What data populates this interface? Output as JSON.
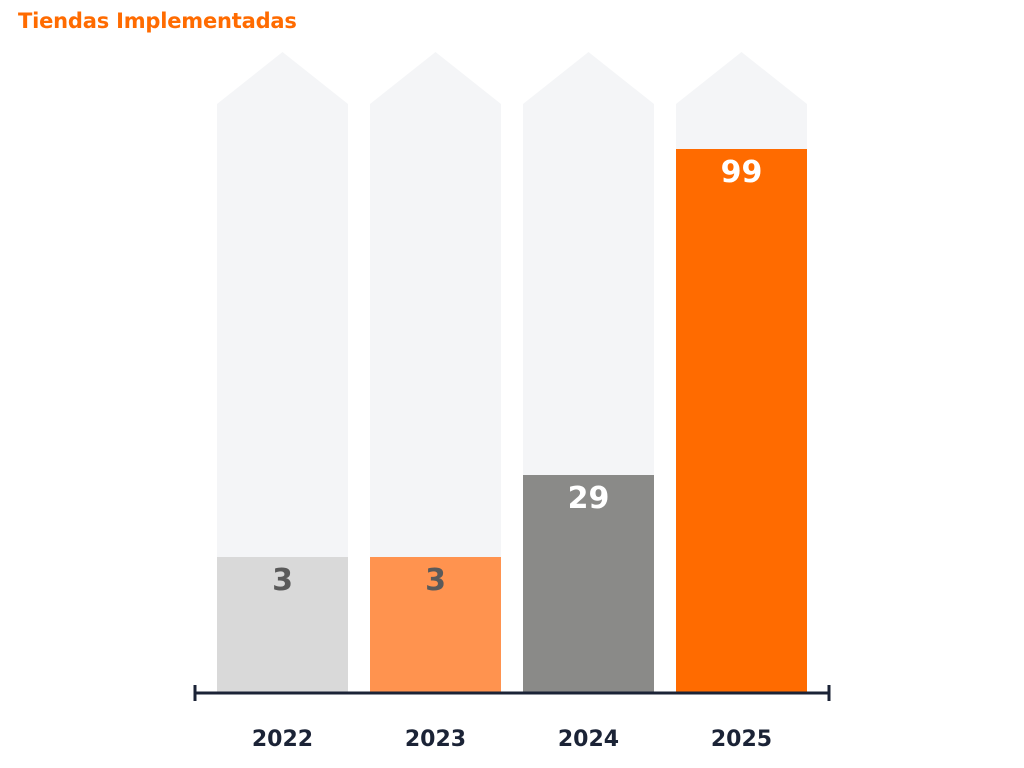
{
  "chart_data": {
    "type": "bar",
    "title": "Tiendas Implementadas",
    "xlabel": "",
    "ylabel": "",
    "categories": [
      "2022",
      "2023",
      "2024",
      "2025"
    ],
    "values": [
      3,
      3,
      29,
      99
    ],
    "bar_levels": [
      0.25,
      0.25,
      0.4,
      1.0
    ],
    "value_labels": [
      "3",
      "3",
      "29",
      "99"
    ],
    "grid": false,
    "legend": "none"
  },
  "colors": {
    "title": "#ff6b00",
    "background_arrow": "#f4f5f7",
    "axis": "#1b2336",
    "category_text": "#1b2336",
    "bars": [
      "#d9d9d9",
      "#ff934f",
      "#8a8a88",
      "#ff6b00"
    ],
    "value_text": [
      "#5a5a5a",
      "#5a5a5a",
      "#ffffff",
      "#ffffff"
    ]
  }
}
